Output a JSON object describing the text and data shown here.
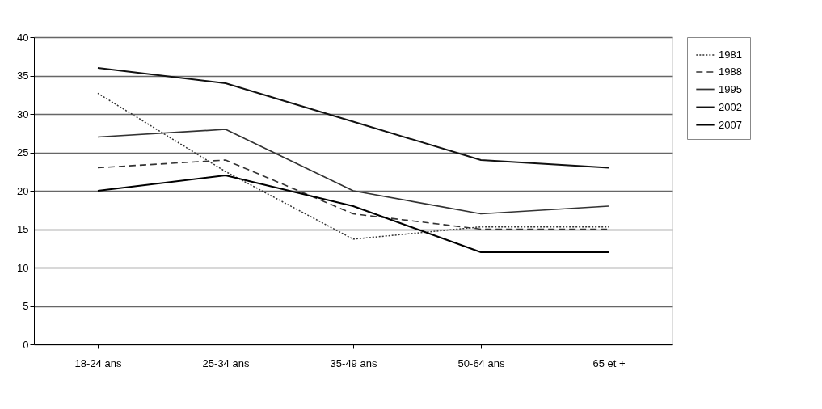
{
  "chart_data": {
    "type": "line",
    "categories": [
      "18-24 ans",
      "25-34 ans",
      "35-49 ans",
      "50-64 ans",
      "65 et +"
    ],
    "series": [
      {
        "name": "1981",
        "color": "#333333",
        "line_style": "dotted",
        "values": [
          32.7,
          22.5,
          13.7,
          15.3,
          15.3
        ]
      },
      {
        "name": "1988",
        "color": "#333333",
        "line_style": "dashed",
        "values": [
          23,
          24,
          17,
          15,
          15
        ]
      },
      {
        "name": "1995",
        "color": "#333333",
        "line_style": "solid",
        "values": [
          27,
          28,
          20,
          17,
          18
        ]
      },
      {
        "name": "2002",
        "color": "#111111",
        "line_style": "solid",
        "values": [
          36,
          34,
          29,
          24,
          23
        ]
      },
      {
        "name": "2007",
        "color": "#000000",
        "line_style": "solid",
        "values": [
          20,
          22,
          18,
          12,
          12
        ]
      }
    ],
    "ylim": [
      0,
      40
    ],
    "yticks": [
      0,
      5,
      10,
      15,
      20,
      25,
      30,
      35,
      40
    ],
    "grid": "y",
    "legend": "right",
    "marker": "none"
  }
}
